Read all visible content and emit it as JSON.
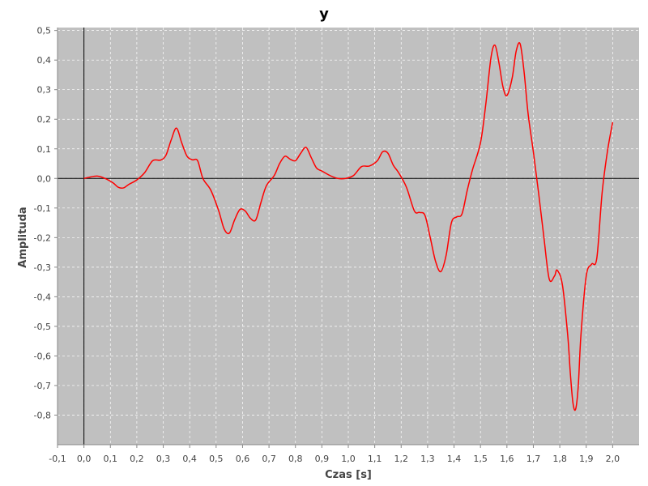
{
  "chart_data": {
    "type": "line",
    "title": "y",
    "xlabel": "Czas [s]",
    "ylabel": "Amplituda",
    "xlim": [
      -0.1,
      2.1
    ],
    "ylim": [
      -0.9,
      0.51
    ],
    "grid": true,
    "x_ticks": [
      "-0,1",
      "0,0",
      "0,1",
      "0,2",
      "0,3",
      "0,4",
      "0,5",
      "0,6",
      "0,7",
      "0,8",
      "0,9",
      "1,0",
      "1,1",
      "1,2",
      "1,3",
      "1,4",
      "1,5",
      "1,6",
      "1,7",
      "1,8",
      "1,9",
      "2,0"
    ],
    "y_ticks": [
      "0,5",
      "0,4",
      "0,3",
      "0,2",
      "0,1",
      "0,0",
      "-0,1",
      "-0,2",
      "-0,3",
      "-0,4",
      "-0,5",
      "-0,6",
      "-0,7",
      "-0,8"
    ],
    "colors": {
      "plot_background": "#c0c0c0",
      "series": "#ff0000",
      "axis": "#000000",
      "grid": "#ffffff"
    },
    "series": [
      {
        "x": [
          0.0,
          0.02,
          0.05,
          0.08,
          0.11,
          0.13,
          0.15,
          0.17,
          0.2,
          0.23,
          0.26,
          0.29,
          0.31,
          0.33,
          0.35,
          0.37,
          0.39,
          0.41,
          0.43,
          0.45,
          0.48,
          0.51,
          0.53,
          0.55,
          0.57,
          0.59,
          0.61,
          0.63,
          0.65,
          0.67,
          0.69,
          0.72,
          0.74,
          0.76,
          0.78,
          0.8,
          0.82,
          0.84,
          0.86,
          0.88,
          0.9,
          0.93,
          0.96,
          0.99,
          1.02,
          1.05,
          1.08,
          1.11,
          1.13,
          1.15,
          1.17,
          1.19,
          1.22,
          1.25,
          1.27,
          1.29,
          1.31,
          1.33,
          1.35,
          1.37,
          1.39,
          1.41,
          1.43,
          1.45,
          1.47,
          1.5,
          1.52,
          1.54,
          1.555,
          1.57,
          1.585,
          1.6,
          1.62,
          1.635,
          1.65,
          1.665,
          1.68,
          1.7,
          1.72,
          1.74,
          1.76,
          1.78,
          1.79,
          1.81,
          1.83,
          1.84,
          1.85,
          1.86,
          1.87,
          1.88,
          1.9,
          1.92,
          1.94,
          1.96,
          1.98,
          2.0
        ],
        "y": [
          0.0,
          0.004,
          0.008,
          0.0,
          -0.015,
          -0.03,
          -0.032,
          -0.02,
          -0.005,
          0.02,
          0.06,
          0.062,
          0.078,
          0.13,
          0.17,
          0.12,
          0.075,
          0.063,
          0.06,
          0.0,
          -0.04,
          -0.11,
          -0.17,
          -0.185,
          -0.14,
          -0.105,
          -0.11,
          -0.135,
          -0.14,
          -0.08,
          -0.025,
          0.01,
          0.05,
          0.075,
          0.065,
          0.06,
          0.085,
          0.105,
          0.07,
          0.035,
          0.025,
          0.01,
          0.0,
          0.0,
          0.01,
          0.04,
          0.042,
          0.06,
          0.09,
          0.085,
          0.045,
          0.02,
          -0.03,
          -0.11,
          -0.115,
          -0.125,
          -0.2,
          -0.28,
          -0.315,
          -0.26,
          -0.15,
          -0.13,
          -0.12,
          -0.04,
          0.03,
          0.12,
          0.25,
          0.41,
          0.45,
          0.39,
          0.31,
          0.28,
          0.34,
          0.43,
          0.455,
          0.36,
          0.22,
          0.09,
          -0.05,
          -0.2,
          -0.34,
          -0.33,
          -0.31,
          -0.36,
          -0.53,
          -0.66,
          -0.76,
          -0.78,
          -0.7,
          -0.53,
          -0.33,
          -0.29,
          -0.27,
          -0.05,
          0.09,
          0.19
        ]
      }
    ]
  }
}
